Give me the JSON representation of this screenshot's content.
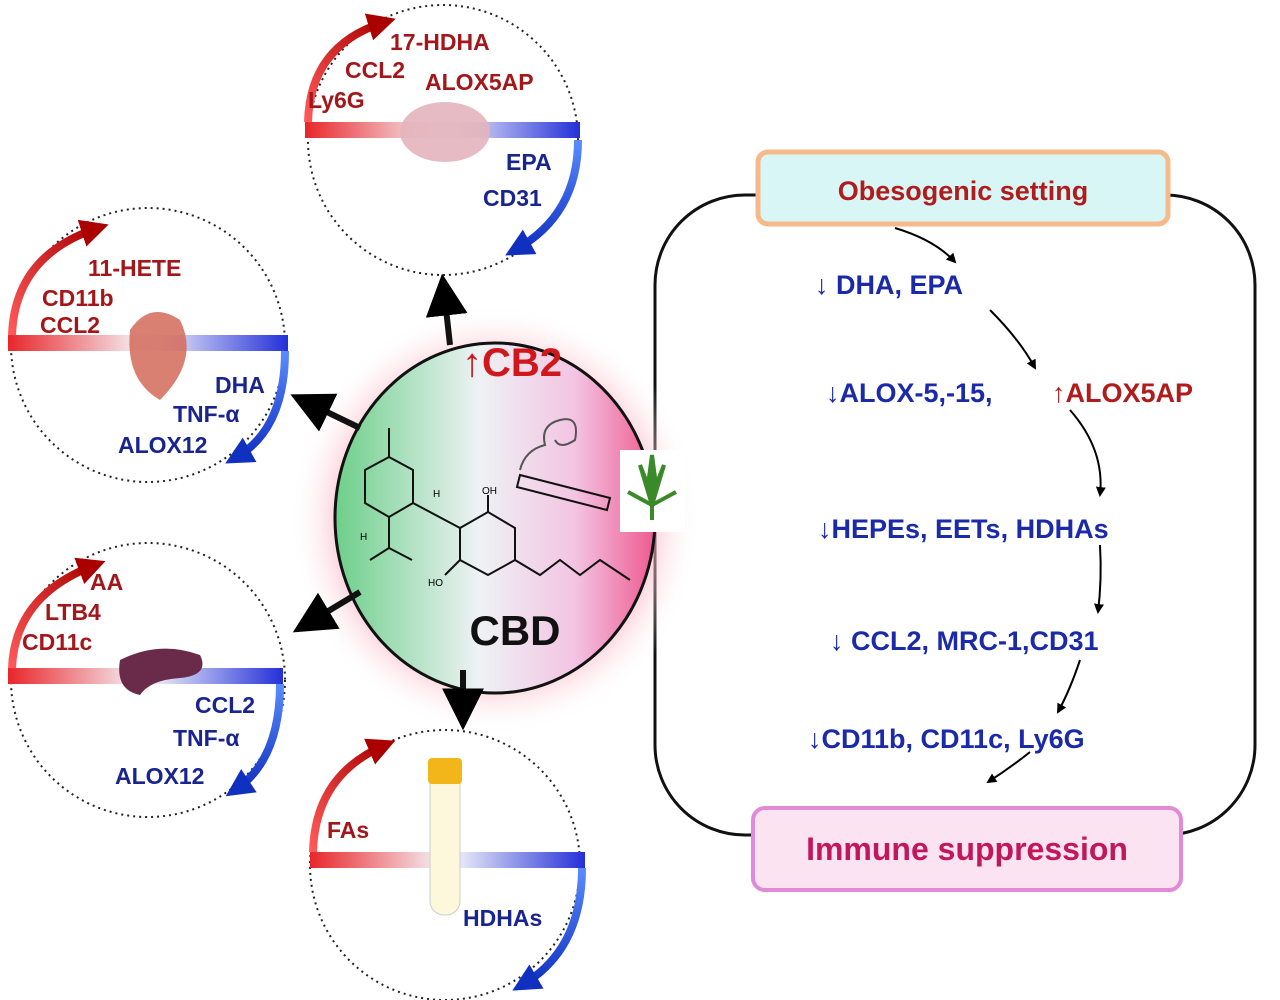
{
  "center": {
    "receptor": "↑CB2",
    "compound": "CBD",
    "labels": {
      "oh_top": "OH",
      "oh_bottom": "HO",
      "h1": "H",
      "h2": "H"
    }
  },
  "organs": {
    "lung": {
      "up": [
        "17-HDHA",
        "CCL2",
        "ALOX5AP",
        "Ly6G"
      ],
      "down": [
        "EPA",
        "CD31"
      ]
    },
    "heart": {
      "up": [
        "11-HETE",
        "CD11b",
        "CCL2"
      ],
      "down": [
        "DHA",
        "TNF-α",
        "ALOX12"
      ]
    },
    "spleen": {
      "up": [
        "AA",
        "LTB4",
        "CD11c"
      ],
      "down": [
        "CCL2",
        "TNF-α",
        "ALOX12"
      ]
    },
    "blood": {
      "up": [
        "FAs"
      ],
      "down": [
        "HDHAs"
      ]
    }
  },
  "pathway": {
    "start": "Obesogenic setting",
    "steps": [
      "↓ DHA, EPA",
      "↓ALOX-5,-15,",
      "↑ALOX5AP",
      "↓HEPEs, EETs, HDHAs",
      "↓ CCL2, MRC-1,CD31",
      "↓CD11b, CD11c,  Ly6G"
    ],
    "end": "Immune suppression"
  },
  "colors": {
    "up": "#a3161a",
    "down": "#18248f",
    "start_box": "#d9f6f7",
    "end_box": "#fbe3f2"
  }
}
